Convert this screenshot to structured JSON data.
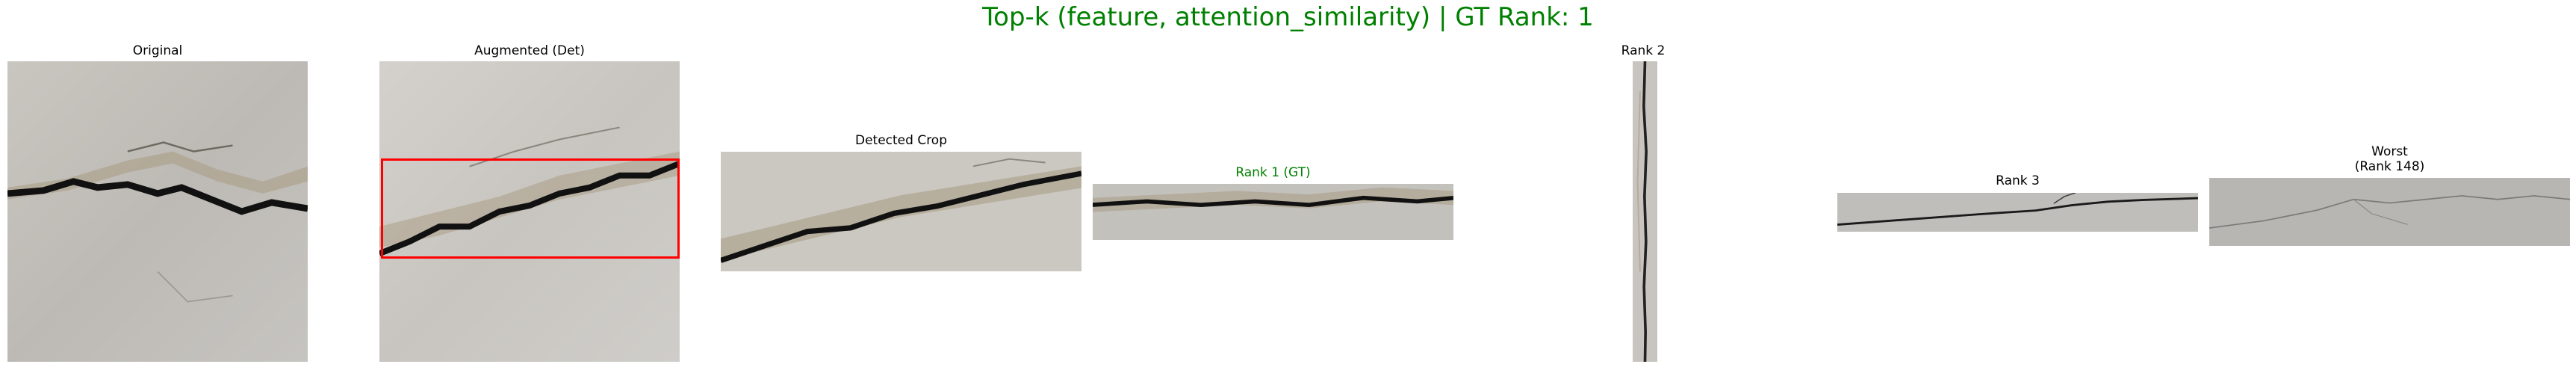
{
  "figure": {
    "title": "Top-k (feature, attention_similarity) | GT Rank: 1",
    "title_color": "#008000"
  },
  "panels": {
    "original": {
      "title": "Original"
    },
    "augmented": {
      "title": "Augmented (Det)",
      "box_color": "#ff0000"
    },
    "detected_crop": {
      "title": "Detected Crop"
    },
    "rank1": {
      "title": "Rank 1 (GT)",
      "title_color": "#008000"
    },
    "rank2": {
      "title": "Rank 2"
    },
    "rank3": {
      "title": "Rank 3"
    },
    "worst": {
      "title_line1": "Worst",
      "title_line2": "(Rank 148)"
    }
  }
}
